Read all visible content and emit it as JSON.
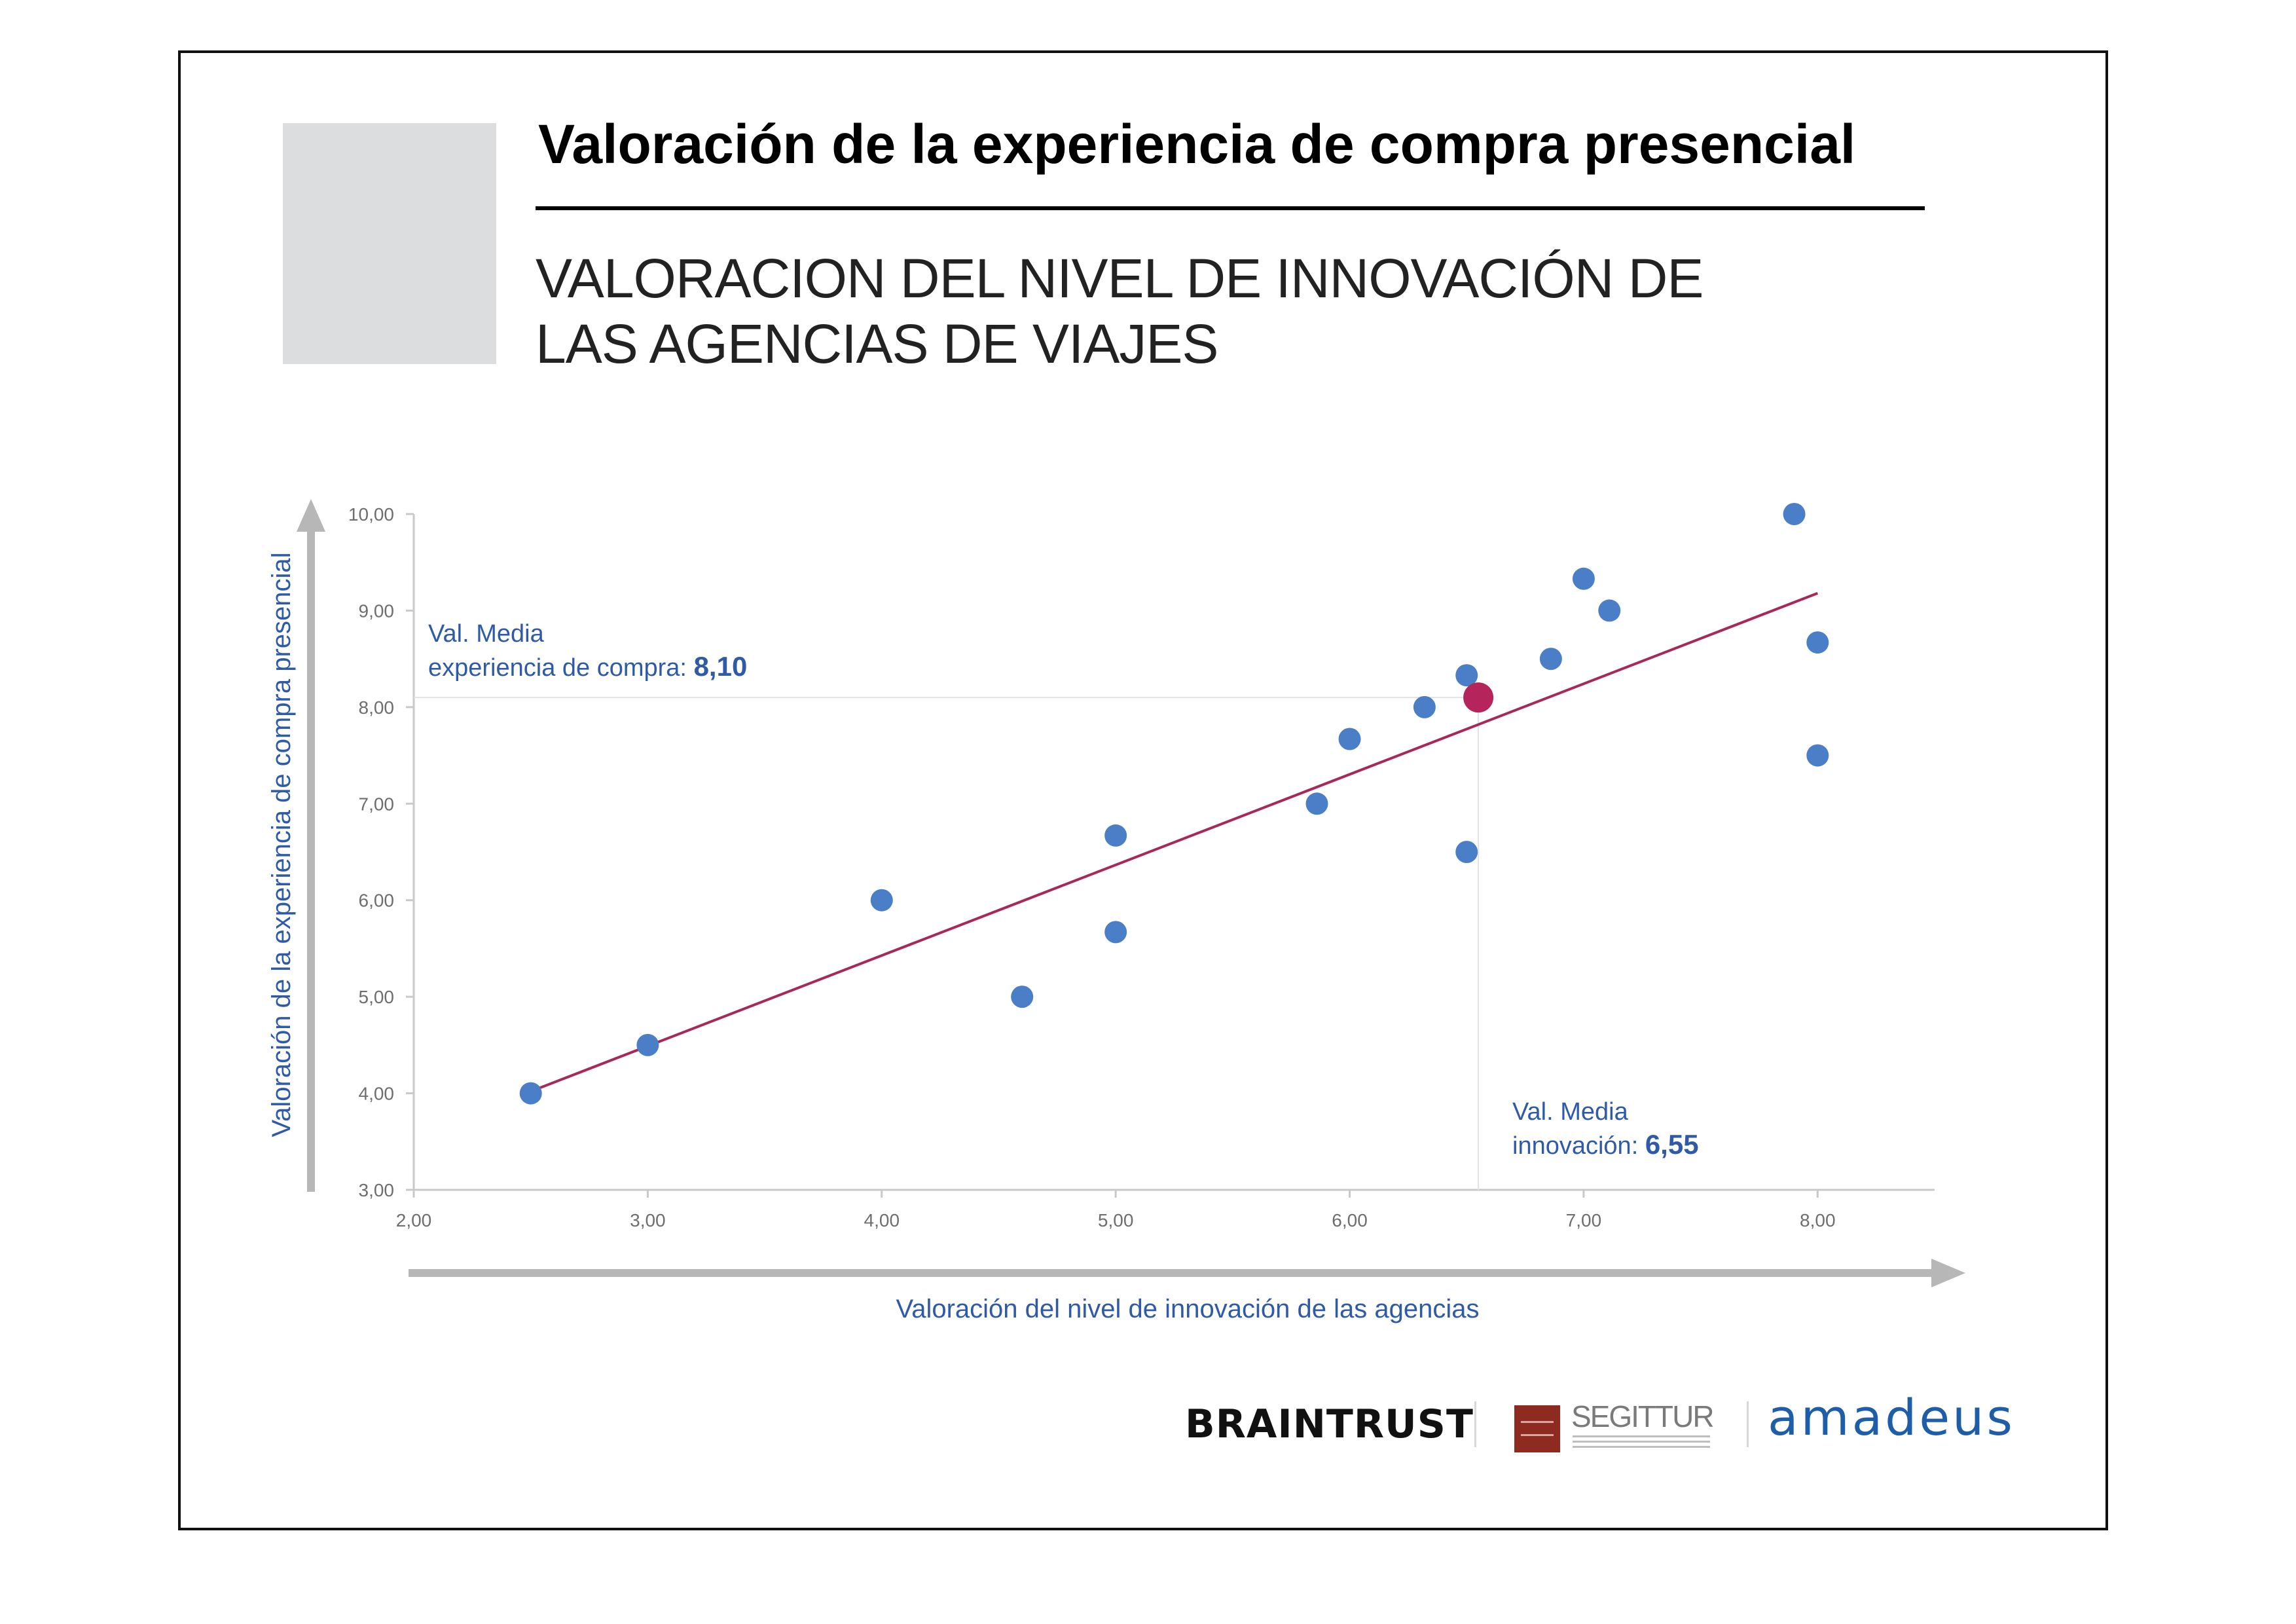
{
  "header": {
    "title": "Valoración de la experiencia de compra presencial",
    "subtitle_line1": "VALORACION DEL NIVEL DE INNOVACIÓN DE",
    "subtitle_line2": "LAS AGENCIAS DE VIAJES"
  },
  "chart_data": {
    "type": "scatter",
    "xlabel": "Valoración del nivel de innovación de las agencias",
    "ylabel": "Valoración de la experiencia de compra presencial",
    "xlim": [
      2,
      8.5
    ],
    "ylim": [
      3,
      10
    ],
    "x_ticks": [
      "2,00",
      "3,00",
      "4,00",
      "5,00",
      "6,00",
      "7,00",
      "8,00"
    ],
    "x_tick_values": [
      2,
      3,
      4,
      5,
      6,
      7,
      8
    ],
    "y_ticks": [
      "3,00",
      "4,00",
      "5,00",
      "6,00",
      "7,00",
      "8,00",
      "9,00",
      "10,00"
    ],
    "y_tick_values": [
      3,
      4,
      5,
      6,
      7,
      8,
      9,
      10
    ],
    "points": [
      {
        "x": 2.5,
        "y": 4.0
      },
      {
        "x": 3.0,
        "y": 4.5
      },
      {
        "x": 4.0,
        "y": 6.0
      },
      {
        "x": 4.6,
        "y": 5.0
      },
      {
        "x": 5.0,
        "y": 6.67
      },
      {
        "x": 5.0,
        "y": 5.67
      },
      {
        "x": 5.86,
        "y": 7.0
      },
      {
        "x": 6.0,
        "y": 7.67
      },
      {
        "x": 6.32,
        "y": 8.0
      },
      {
        "x": 6.5,
        "y": 8.33
      },
      {
        "x": 6.5,
        "y": 6.5
      },
      {
        "x": 6.86,
        "y": 8.5
      },
      {
        "x": 7.0,
        "y": 9.33
      },
      {
        "x": 7.11,
        "y": 9.0
      },
      {
        "x": 7.9,
        "y": 10.0
      },
      {
        "x": 8.0,
        "y": 8.67
      },
      {
        "x": 8.0,
        "y": 7.5
      }
    ],
    "mean_point": {
      "x": 6.55,
      "y": 8.1
    },
    "trendline": {
      "x": [
        2.5,
        8.0
      ],
      "y": [
        4.02,
        9.18
      ]
    },
    "annotations": {
      "y_mean_label_line1": "Val. Media",
      "y_mean_label_line2": "experiencia de compra: ",
      "y_mean_value": "8,10",
      "x_mean_label_line1": "Val. Media",
      "x_mean_label_line2": "innovación: ",
      "x_mean_value": "6,55"
    },
    "colors": {
      "points": "#4a7fc7",
      "mean_point": "#b5255b",
      "trendline": "#a8285a",
      "label_text": "#2f5aa8",
      "tick_text": "#6e6e6e",
      "axis_arrow": "#b7b7b7"
    },
    "grid": false
  },
  "footer": {
    "logo_braintrust": "BRAINTRUST",
    "logo_segittur": "SEGITTUR",
    "logo_amadeus": "amadeus"
  }
}
